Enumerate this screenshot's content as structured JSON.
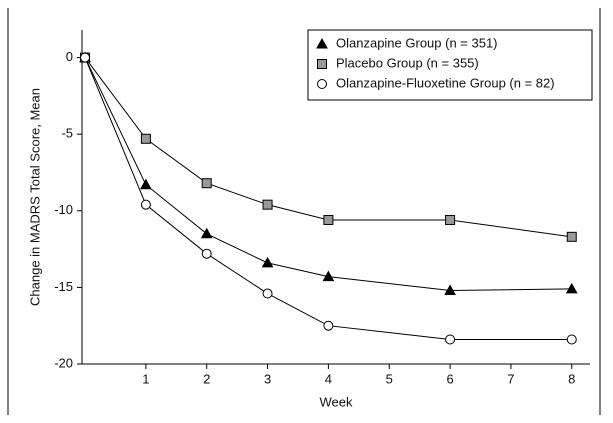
{
  "chart_data": {
    "type": "line",
    "x_label": "Week",
    "y_label": "Change in MADRS Total Score, Mean",
    "x": [
      0,
      1,
      2,
      3,
      4,
      6,
      8
    ],
    "series": [
      {
        "name": "Olanzapine Group (n = 351)",
        "color": "#000000",
        "marker": "triangle",
        "values": [
          0,
          -8.3,
          -11.5,
          -13.4,
          -14.3,
          -15.2,
          -15.1
        ]
      },
      {
        "name": "Placebo Group (n = 355)",
        "color": "#999999",
        "marker": "square",
        "values": [
          0,
          -5.3,
          -8.2,
          -9.6,
          -10.6,
          -10.6,
          -11.7
        ]
      },
      {
        "name": "Olanzapine-Fluoxetine Group (n = 82)",
        "color": "#ffffff",
        "marker": "circle",
        "values": [
          0,
          -9.6,
          -12.8,
          -15.4,
          -17.5,
          -18.4,
          -18.4
        ]
      }
    ],
    "xlim": [
      -0.05,
      8.3
    ],
    "xticks": [
      1,
      2,
      3,
      4,
      5,
      6,
      7,
      8
    ],
    "ylim": [
      -20,
      1.8
    ],
    "yticks": [
      0,
      -5,
      -10,
      -15,
      -20
    ],
    "legend": "upper right"
  }
}
